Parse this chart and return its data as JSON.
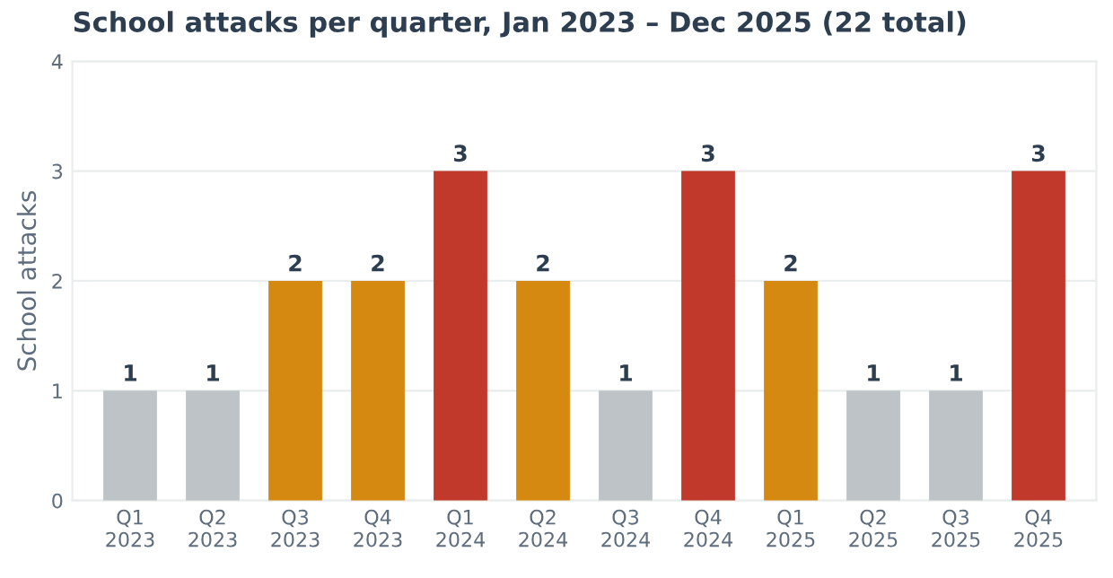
{
  "chart_data": {
    "type": "bar",
    "title": "School attacks per quarter, Jan 2023 – Dec 2025 (22 total)",
    "ylabel": "School attacks",
    "categories": [
      "Q1\n2023",
      "Q2\n2023",
      "Q3\n2023",
      "Q4\n2023",
      "Q1\n2024",
      "Q2\n2024",
      "Q3\n2024",
      "Q4\n2024",
      "Q1\n2025",
      "Q2\n2025",
      "Q3\n2025",
      "Q4\n2025"
    ],
    "values": [
      1,
      1,
      2,
      2,
      3,
      2,
      1,
      3,
      2,
      1,
      1,
      3
    ],
    "colors": [
      "#bdc3c7",
      "#bdc3c7",
      "#d68910",
      "#d68910",
      "#c0392b",
      "#d68910",
      "#bdc3c7",
      "#c0392b",
      "#d68910",
      "#bdc3c7",
      "#bdc3c7",
      "#c0392b"
    ],
    "ylim": [
      0,
      4
    ],
    "yticks": [
      0,
      1,
      2,
      3,
      4
    ],
    "grid": "y",
    "data_labels": true
  }
}
